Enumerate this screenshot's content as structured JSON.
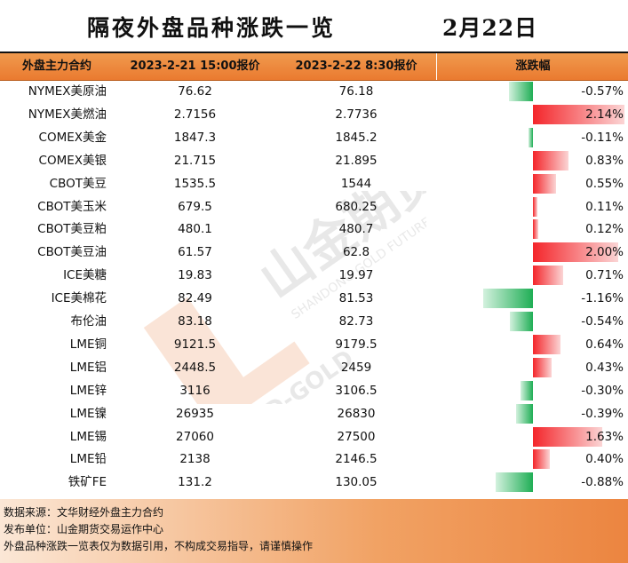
{
  "title": "隔夜外盘品种涨跌一览",
  "date": "2月22日",
  "header": {
    "name": "外盘主力合约",
    "prev": "2023-2-21 15:00报价",
    "curr": "2023-2-22 8:30报价",
    "change": "涨跌幅"
  },
  "colors": {
    "up": "#f4262b",
    "down": "#1fae55",
    "header": "#ea7a30"
  },
  "watermark": {
    "text_cn": "山金期货",
    "text_en": "SHANDONG GOLD FUTURES",
    "brand": "SD-GOLD"
  },
  "chart_data": {
    "type": "table",
    "columns": [
      "外盘主力合约",
      "2023-2-21 15:00报价",
      "2023-2-22 8:30报价",
      "涨跌幅"
    ],
    "rows": [
      {
        "name": "NYMEX美原油",
        "prev": "76.62",
        "curr": "76.18",
        "pct_text": "-0.57%",
        "pct": -0.57
      },
      {
        "name": "NYMEX美燃油",
        "prev": "2.7156",
        "curr": "2.7736",
        "pct_text": "2.14%",
        "pct": 2.14
      },
      {
        "name": "COMEX美金",
        "prev": "1847.3",
        "curr": "1845.2",
        "pct_text": "-0.11%",
        "pct": -0.11
      },
      {
        "name": "COMEX美银",
        "prev": "21.715",
        "curr": "21.895",
        "pct_text": "0.83%",
        "pct": 0.83
      },
      {
        "name": "CBOT美豆",
        "prev": "1535.5",
        "curr": "1544",
        "pct_text": "0.55%",
        "pct": 0.55
      },
      {
        "name": "CBOT美玉米",
        "prev": "679.5",
        "curr": "680.25",
        "pct_text": "0.11%",
        "pct": 0.11
      },
      {
        "name": "CBOT美豆粕",
        "prev": "480.1",
        "curr": "480.7",
        "pct_text": "0.12%",
        "pct": 0.12
      },
      {
        "name": "CBOT美豆油",
        "prev": "61.57",
        "curr": "62.8",
        "pct_text": "2.00%",
        "pct": 2.0
      },
      {
        "name": "ICE美糖",
        "prev": "19.83",
        "curr": "19.97",
        "pct_text": "0.71%",
        "pct": 0.71
      },
      {
        "name": "ICE美棉花",
        "prev": "82.49",
        "curr": "81.53",
        "pct_text": "-1.16%",
        "pct": -1.16
      },
      {
        "name": "布伦油",
        "prev": "83.18",
        "curr": "82.73",
        "pct_text": "-0.54%",
        "pct": -0.54
      },
      {
        "name": "LME铜",
        "prev": "9121.5",
        "curr": "9179.5",
        "pct_text": "0.64%",
        "pct": 0.64
      },
      {
        "name": "LME铝",
        "prev": "2448.5",
        "curr": "2459",
        "pct_text": "0.43%",
        "pct": 0.43
      },
      {
        "name": "LME锌",
        "prev": "3116",
        "curr": "3106.5",
        "pct_text": "-0.30%",
        "pct": -0.3
      },
      {
        "name": "LME镍",
        "prev": "26935",
        "curr": "26830",
        "pct_text": "-0.39%",
        "pct": -0.39
      },
      {
        "name": "LME锡",
        "prev": "27060",
        "curr": "27500",
        "pct_text": "1.63%",
        "pct": 1.63
      },
      {
        "name": "LME铅",
        "prev": "2138",
        "curr": "2146.5",
        "pct_text": "0.40%",
        "pct": 0.4
      },
      {
        "name": "铁矿FE",
        "prev": "131.2",
        "curr": "130.05",
        "pct_text": "-0.88%",
        "pct": -0.88
      }
    ]
  },
  "footer": {
    "line1": "数据来源：文华财经外盘主力合约",
    "line2": "发布单位：山金期货交易运作中心",
    "line3": "外盘品种涨跌一览表仅为数据引用，不构成交易指导，请谨慎操作"
  }
}
